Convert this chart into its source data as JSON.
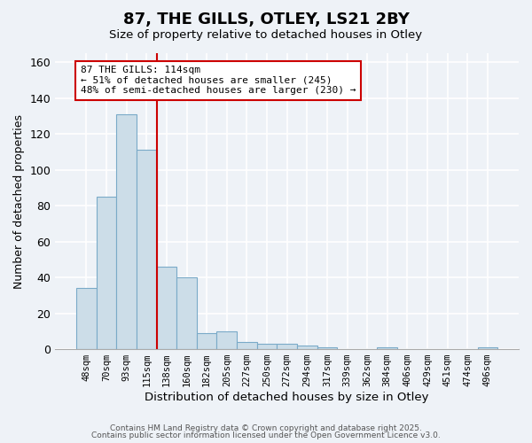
{
  "title": "87, THE GILLS, OTLEY, LS21 2BY",
  "subtitle": "Size of property relative to detached houses in Otley",
  "xlabel": "Distribution of detached houses by size in Otley",
  "ylabel": "Number of detached properties",
  "bar_values": [
    34,
    85,
    131,
    111,
    46,
    40,
    9,
    10,
    4,
    3,
    3,
    2,
    1,
    0,
    0,
    1,
    0,
    0,
    0,
    0,
    1
  ],
  "bar_labels": [
    "48sqm",
    "70sqm",
    "93sqm",
    "115sqm",
    "138sqm",
    "160sqm",
    "182sqm",
    "205sqm",
    "227sqm",
    "250sqm",
    "272sqm",
    "294sqm",
    "317sqm",
    "339sqm",
    "362sqm",
    "384sqm",
    "406sqm",
    "429sqm",
    "451sqm",
    "474sqm",
    "496sqm"
  ],
  "bar_color": "#ccdde8",
  "bar_edge_color": "#7aaac8",
  "vline_color": "#cc0000",
  "vline_pos": 3.5,
  "annotation_title": "87 THE GILLS: 114sqm",
  "annotation_line1": "← 51% of detached houses are smaller (245)",
  "annotation_line2": "48% of semi-detached houses are larger (230) →",
  "annotation_box_color": "#ffffff",
  "annotation_box_edge": "#cc0000",
  "ylim": [
    0,
    165
  ],
  "yticks": [
    0,
    20,
    40,
    60,
    80,
    100,
    120,
    140,
    160
  ],
  "footnote1": "Contains HM Land Registry data © Crown copyright and database right 2025.",
  "footnote2": "Contains public sector information licensed under the Open Government Licence v3.0.",
  "bg_color": "#eef2f7",
  "plot_bg_color": "#eef2f7"
}
